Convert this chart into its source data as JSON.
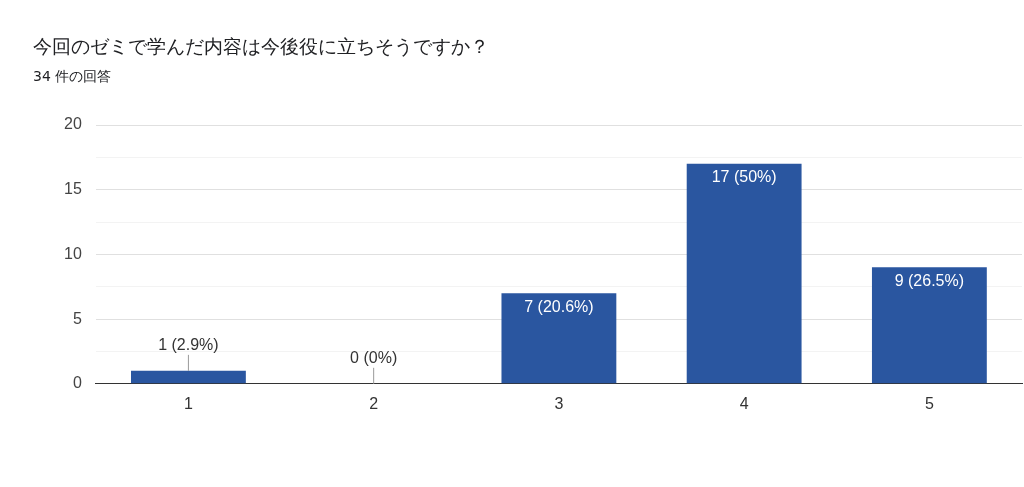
{
  "chart_data": {
    "type": "bar",
    "title": "今回のゼミで学んだ内容は今後役に立ちそうですか？",
    "subtitle": "34 件の回答",
    "categories": [
      "1",
      "2",
      "3",
      "4",
      "5"
    ],
    "values": [
      1,
      0,
      7,
      17,
      9
    ],
    "value_labels": [
      "1 (2.9%)",
      "0 (0%)",
      "7 (20.6%)",
      "17 (50%)",
      "9 (26.5%)"
    ],
    "color": "#2a56a0",
    "ylim": [
      0,
      20
    ],
    "yticks": [
      0,
      {
        "value": 2.5,
        "label": null
      },
      5,
      {
        "value": 7.5,
        "label": null
      },
      10,
      {
        "value": 12.5,
        "label": null
      },
      15,
      {
        "value": 17.5,
        "label": null
      },
      20
    ],
    "grid": "y",
    "legend": false
  }
}
